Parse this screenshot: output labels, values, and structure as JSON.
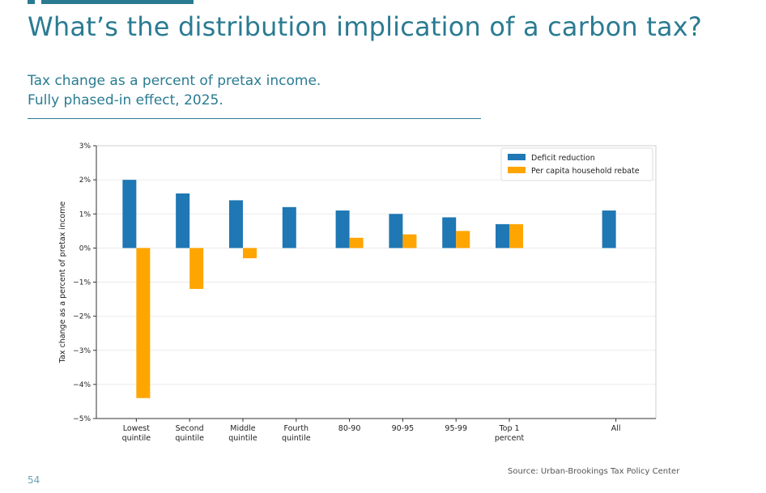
{
  "slide": {
    "title": "What’s the distribution implication of a carbon tax?",
    "subtitle_line1": "Tax change as a percent of pretax income.",
    "subtitle_line2": "Fully phased-in effect, 2025.",
    "source": "Source: Urban-Brookings Tax Policy Center",
    "page_number": "54",
    "accent_color": "#2a7b92"
  },
  "chart_data": {
    "type": "bar",
    "title": "",
    "xlabel": "",
    "ylabel": "Tax change as a percent of pretax income",
    "ylim": [
      -5,
      3
    ],
    "yticks": [
      "3%",
      "2%",
      "1%",
      "0%",
      "−1%",
      "−2%",
      "−3%",
      "−4%",
      "−5%"
    ],
    "grid": true,
    "legend_position": "top-right",
    "categories": [
      [
        "Lowest",
        "quintile"
      ],
      [
        "Second",
        "quintile"
      ],
      [
        "Middle",
        "quintile"
      ],
      [
        "Fourth",
        "quintile"
      ],
      [
        "80-90"
      ],
      [
        "90-95"
      ],
      [
        "95-99"
      ],
      [
        "Top 1",
        "percent"
      ],
      [
        "All"
      ]
    ],
    "series": [
      {
        "name": "Deficit reduction",
        "color": "#1f77b4",
        "values": [
          2.0,
          1.6,
          1.4,
          1.2,
          1.1,
          1.0,
          0.9,
          0.7,
          1.1
        ]
      },
      {
        "name": "Per capita household rebate",
        "color": "#ffa500",
        "values": [
          -4.4,
          -1.2,
          -0.3,
          null,
          0.3,
          0.4,
          0.5,
          0.7,
          null
        ]
      }
    ]
  }
}
